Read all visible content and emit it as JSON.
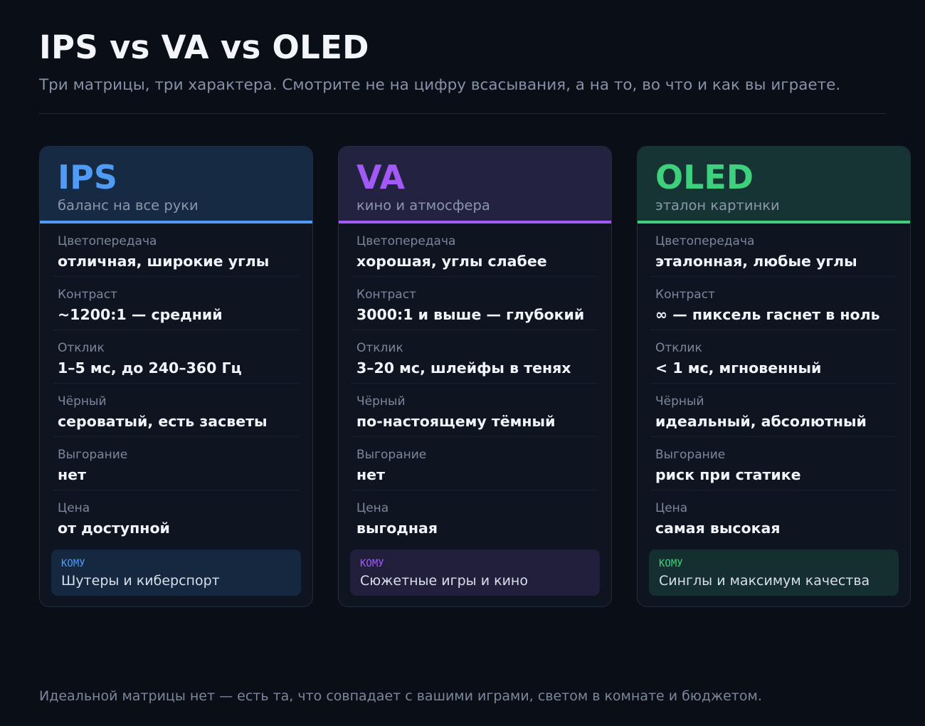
{
  "header": {
    "title": "IPS vs VA vs OLED",
    "subtitle": "Три матрицы, три характера. Смотрите не на цифру всасывания, а на то, во что и как вы играете."
  },
  "cards": [
    {
      "name": "IPS",
      "tagline": "баланс на все руки",
      "accent_color": "#4f9bf5",
      "header_bg": "#172a44",
      "who_bg": "#162840",
      "rows": [
        {
          "label": "Цветопередача",
          "value": "отличная, широкие углы"
        },
        {
          "label": "Контраст",
          "value": "~1200:1 — средний"
        },
        {
          "label": "Отклик",
          "value": "1–5 мс, до 240–360 Гц"
        },
        {
          "label": "Чёрный",
          "value": "сероватый, есть засветы"
        },
        {
          "label": "Выгорание",
          "value": "нет"
        },
        {
          "label": "Цена",
          "value": "от доступной"
        }
      ],
      "who_label": "КОМУ",
      "who_text": "Шутеры и киберспорт"
    },
    {
      "name": "VA",
      "tagline": "кино и атмосфера",
      "accent_color": "#a259f5",
      "header_bg": "#232240",
      "who_bg": "#211f3c",
      "rows": [
        {
          "label": "Цветопередача",
          "value": "хорошая, углы слабее"
        },
        {
          "label": "Контраст",
          "value": "3000:1 и выше — глубокий"
        },
        {
          "label": "Отклик",
          "value": "3–20 мс, шлейфы в тенях"
        },
        {
          "label": "Чёрный",
          "value": "по-настоящему тёмный"
        },
        {
          "label": "Выгорание",
          "value": "нет"
        },
        {
          "label": "Цена",
          "value": "выгодная"
        }
      ],
      "who_label": "КОМУ",
      "who_text": "Сюжетные игры и кино"
    },
    {
      "name": "OLED",
      "tagline": "эталон картинки",
      "accent_color": "#3fd07e",
      "header_bg": "#163434",
      "who_bg": "#152e30",
      "rows": [
        {
          "label": "Цветопередача",
          "value": "эталонная, любые углы"
        },
        {
          "label": "Контраст",
          "value": "∞ — пиксель гаснет в ноль"
        },
        {
          "label": "Отклик",
          "value": "< 1 мс, мгновенный"
        },
        {
          "label": "Чёрный",
          "value": "идеальный, абсолютный"
        },
        {
          "label": "Выгорание",
          "value": "риск при статике"
        },
        {
          "label": "Цена",
          "value": "самая высокая"
        }
      ],
      "who_label": "КОМУ",
      "who_text": "Синглы и максимум качества"
    }
  ],
  "footer": "Идеальной матрицы нет — есть та, что совпадает с вашими играми, светом в комнате и бюджетом."
}
